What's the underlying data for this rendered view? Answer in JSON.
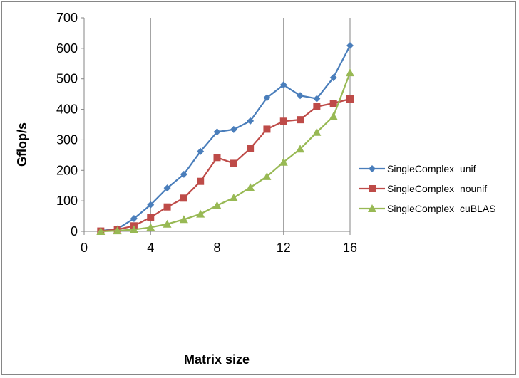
{
  "chart_data": {
    "type": "line",
    "title": "",
    "xlabel": "Matrix size",
    "ylabel": "Gflop/s",
    "xlim": [
      0,
      16
    ],
    "ylim": [
      0,
      700
    ],
    "xticks": [
      0,
      4,
      8,
      12,
      16
    ],
    "yticks": [
      0,
      100,
      200,
      300,
      400,
      500,
      600,
      700
    ],
    "grid": "vertical gridlines only",
    "legend_position": "right",
    "series": [
      {
        "name": "SingleComplex_unif",
        "color": "#4a7ebb",
        "marker": "diamond",
        "x": [
          1,
          2,
          3,
          4,
          5,
          6,
          7,
          8,
          9,
          10,
          11,
          12,
          13,
          14,
          15,
          16
        ],
        "y": [
          2,
          8,
          42,
          87,
          142,
          187,
          262,
          326,
          334,
          362,
          438,
          480,
          445,
          435,
          504,
          609
        ]
      },
      {
        "name": "SingleComplex_nounif",
        "color": "#be4b48",
        "marker": "square",
        "x": [
          1,
          2,
          3,
          4,
          5,
          6,
          7,
          8,
          9,
          10,
          11,
          12,
          13,
          14,
          15,
          16
        ],
        "y": [
          1,
          6,
          18,
          46,
          80,
          109,
          164,
          242,
          223,
          272,
          335,
          361,
          366,
          409,
          420,
          434
        ]
      },
      {
        "name": "SingleComplex_cuBLAS",
        "color": "#98b954",
        "marker": "triangle",
        "x": [
          1,
          2,
          3,
          4,
          5,
          6,
          7,
          8,
          9,
          10,
          11,
          12,
          13,
          14,
          15,
          16
        ],
        "y": [
          0,
          2,
          6,
          13,
          24,
          39,
          57,
          85,
          110,
          144,
          180,
          227,
          270,
          325,
          377,
          520
        ]
      }
    ]
  }
}
